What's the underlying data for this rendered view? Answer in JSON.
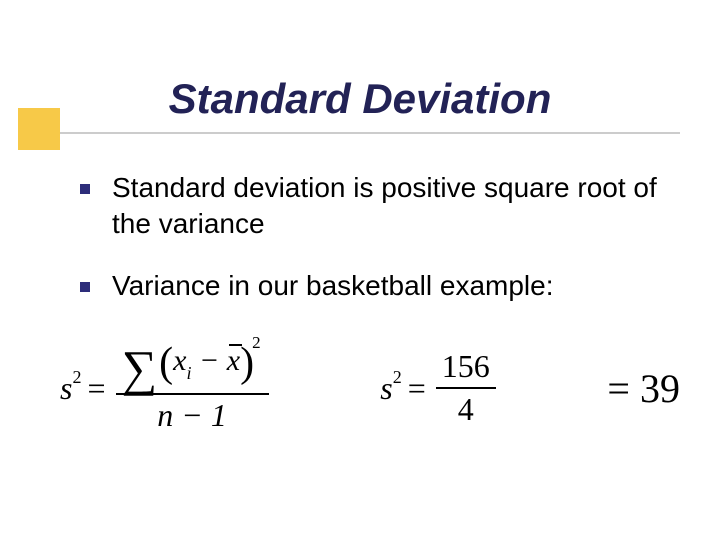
{
  "title": "Standard Deviation",
  "bullets": [
    "Standard deviation is positive square root of the variance",
    "Variance in our basketball example:"
  ],
  "formula_variance": {
    "lhs_sym": "s",
    "lhs_sup": "2",
    "sum_numerator": "156",
    "sum_denominator": "4",
    "defn_denominator": "n − 1"
  },
  "result": {
    "eq": "=",
    "value": "39"
  },
  "colors": {
    "title_color": "#222256",
    "accent_color": "#f7c948",
    "bullet_color": "#2d2d7a"
  }
}
